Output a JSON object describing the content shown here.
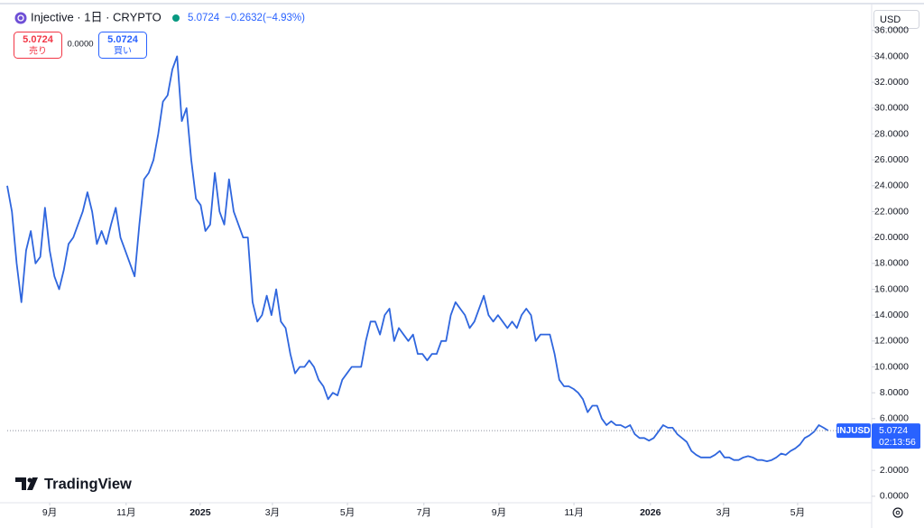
{
  "header": {
    "title": "Injective · 1日 · CRYPTO",
    "price": 5.0724,
    "change": "−0.2632",
    "change_pct": "(−4.93%)"
  },
  "trade": {
    "sell_price": 5.0724,
    "sell_label": "売り",
    "spread": "0.0000",
    "buy_price": 5.0724,
    "buy_label": "買い"
  },
  "currency": "USD",
  "logo": "TradingView",
  "chart_data": {
    "type": "line",
    "color": "#2f66de",
    "grid": false,
    "price_label": {
      "symbol": "INJUSD",
      "price": 5.0724,
      "countdown": "02:13:56"
    },
    "series": [
      {
        "name": "INJUSD",
        "color": "#2f66de",
        "values": [
          24,
          22,
          18,
          15,
          19,
          20.5,
          18,
          18.5,
          22.3,
          19,
          17,
          16,
          17.5,
          19.5,
          20,
          21,
          22,
          23.5,
          22,
          19.5,
          20.5,
          19.5,
          21,
          22.3,
          20,
          19,
          18,
          17,
          21,
          24.5,
          25,
          26,
          28,
          30.5,
          31,
          33,
          34,
          29,
          30,
          26,
          23,
          22.5,
          20.5,
          21,
          25,
          22,
          21,
          24.5,
          22,
          21,
          20,
          20,
          15,
          13.5,
          14,
          15.5,
          14,
          16,
          13.5,
          13,
          11,
          9.5,
          10,
          10,
          10.5,
          10,
          9,
          8.5,
          7.5,
          8,
          7.8,
          9,
          9.5,
          10,
          10,
          10,
          12,
          13.5,
          13.5,
          12.5,
          14,
          14.5,
          12,
          13,
          12.5,
          12,
          12.5,
          11,
          11,
          10.5,
          11,
          11,
          12,
          12,
          14,
          15,
          14.5,
          14,
          13,
          13.5,
          14.5,
          15.5,
          14,
          13.5,
          14,
          13.5,
          13,
          13.5,
          13,
          14,
          14.5,
          14,
          12,
          12.5,
          12.5,
          12.5,
          11,
          9,
          8.5,
          8.5,
          8.3,
          8,
          7.5,
          6.5,
          7,
          7,
          6,
          5.5,
          5.8,
          5.5,
          5.5,
          5.3,
          5.5,
          4.8,
          4.5,
          4.5,
          4.3,
          4.5,
          5,
          5.5,
          5.3,
          5.3,
          4.8,
          4.5,
          4.2,
          3.5,
          3.2,
          3,
          3,
          3,
          3.2,
          3.5,
          3,
          3,
          2.8,
          2.8,
          3,
          3.1,
          3,
          2.8,
          2.8,
          2.7,
          2.8,
          3,
          3.3,
          3.2,
          3.5,
          3.7,
          4,
          4.5,
          4.7,
          5,
          5.5,
          5.3,
          5.0724
        ]
      }
    ],
    "xlim": [
      0,
      183
    ],
    "xticks": [
      {
        "value": 9.0,
        "label": "9月"
      },
      {
        "value": 25.2,
        "label": "11月"
      },
      {
        "value": 40.9,
        "label": "2025"
      },
      {
        "value": 56.2,
        "label": "3月"
      },
      {
        "value": 72.1,
        "label": "5月"
      },
      {
        "value": 88.3,
        "label": "7月"
      },
      {
        "value": 104.2,
        "label": "9月"
      },
      {
        "value": 120.1,
        "label": "11月"
      },
      {
        "value": 136.3,
        "label": "2026"
      },
      {
        "value": 151.8,
        "label": "3月"
      },
      {
        "value": 167.5,
        "label": "5月"
      }
    ],
    "ylim": [
      -0.5,
      37.8
    ],
    "yticks": [
      {
        "value": 0,
        "label": "0.0000"
      },
      {
        "value": 2,
        "label": "2.0000"
      },
      {
        "value": 4,
        "label": "4.0000"
      },
      {
        "value": 6,
        "label": "6.0000"
      },
      {
        "value": 8,
        "label": "8.0000"
      },
      {
        "value": 10,
        "label": "10.0000"
      },
      {
        "value": 12,
        "label": "12.0000"
      },
      {
        "value": 14,
        "label": "14.0000"
      },
      {
        "value": 16,
        "label": "16.0000"
      },
      {
        "value": 18,
        "label": "18.0000"
      },
      {
        "value": 20,
        "label": "20.0000"
      },
      {
        "value": 22,
        "label": "22.0000"
      },
      {
        "value": 24,
        "label": "24.0000"
      },
      {
        "value": 26,
        "label": "26.0000"
      },
      {
        "value": 28,
        "label": "28.0000"
      },
      {
        "value": 30,
        "label": "30.0000"
      },
      {
        "value": 32,
        "label": "32.0000"
      },
      {
        "value": 34,
        "label": "34.0000"
      },
      {
        "value": 36,
        "label": "36.0000"
      }
    ]
  }
}
